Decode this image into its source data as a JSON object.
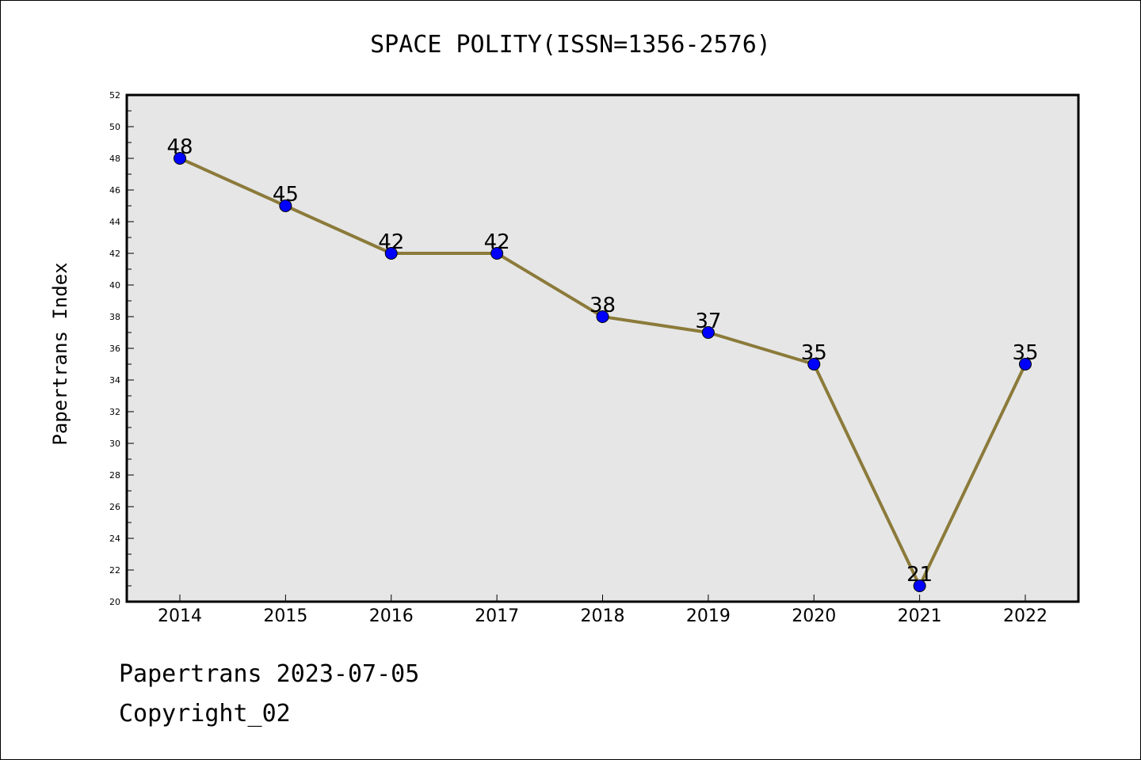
{
  "chart_data": {
    "type": "line",
    "title": "SPACE POLITY(ISSN=1356-2576)",
    "xlabel": "",
    "ylabel": "Papertrans Index",
    "categories": [
      "2014",
      "2015",
      "2016",
      "2017",
      "2018",
      "2019",
      "2020",
      "2021",
      "2022"
    ],
    "series": [
      {
        "values": [
          48,
          45,
          42,
          42,
          38,
          37,
          35,
          21,
          35
        ]
      }
    ],
    "data_labels": [
      "48",
      "45",
      "42",
      "42",
      "38",
      "37",
      "35",
      "21",
      "35"
    ],
    "ylim": [
      20,
      52
    ],
    "y_ticks": [
      "20",
      "22",
      "24",
      "26",
      "28",
      "30",
      "32",
      "34",
      "36",
      "38",
      "40",
      "42",
      "44",
      "46",
      "48",
      "50",
      "52"
    ],
    "grid": false,
    "legend": "none",
    "colors": {
      "line": "#8B7A3A",
      "marker": "#0000FF",
      "plot_background": "#E6E6E6"
    }
  },
  "footer": {
    "line1": "Papertrans 2023-07-05",
    "line2": "Copyright_02"
  }
}
